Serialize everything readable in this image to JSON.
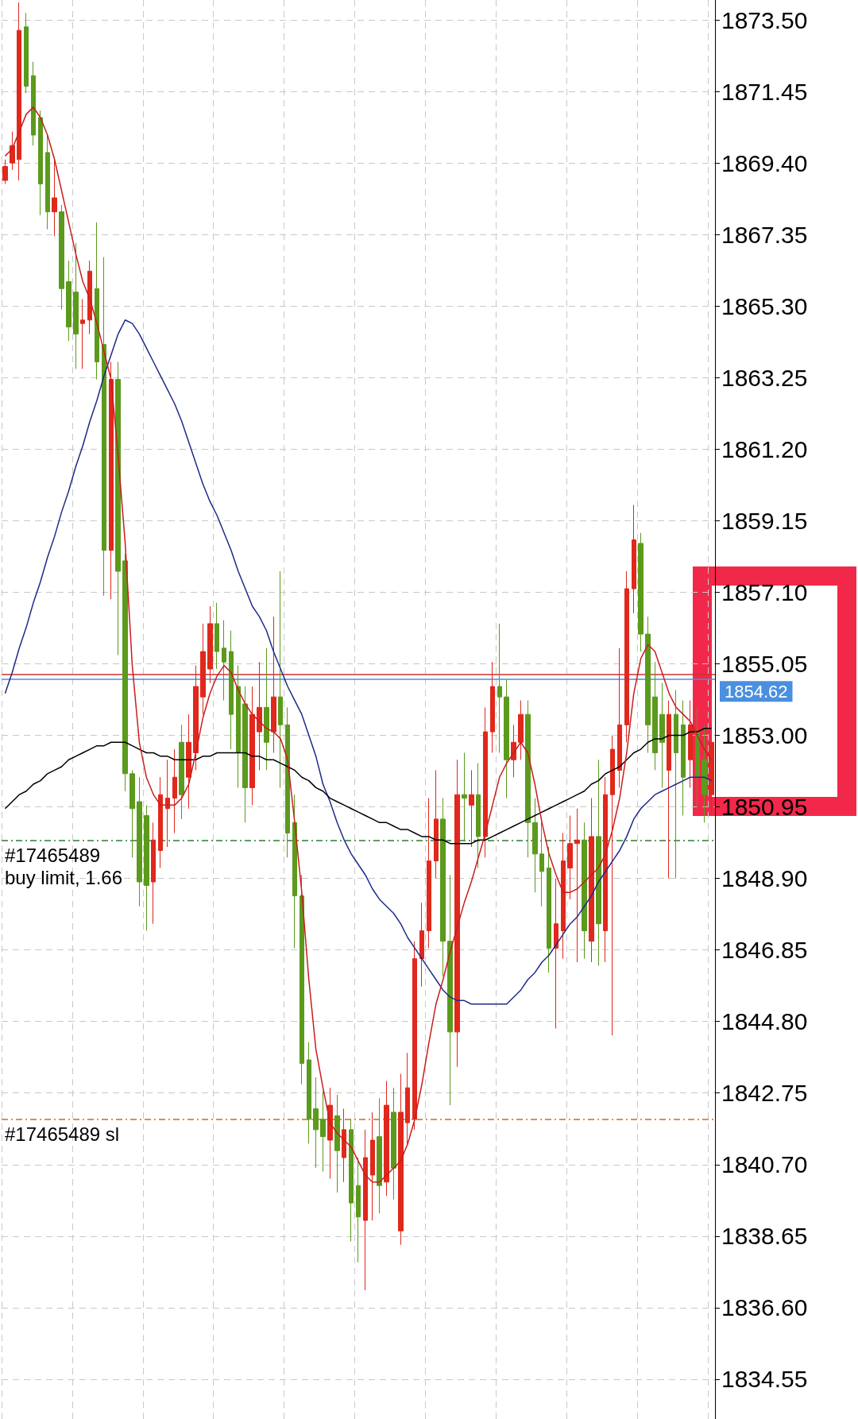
{
  "chart_data": {
    "type": "candlestick",
    "categories": [
      null,
      null,
      null,
      null,
      null,
      null,
      null,
      null,
      null,
      null,
      null,
      null,
      null,
      null,
      null,
      null,
      null,
      null,
      null,
      null,
      null,
      null,
      null,
      null,
      null,
      null,
      null,
      null,
      null,
      null,
      null,
      null,
      null,
      null,
      null,
      null,
      null,
      null,
      null,
      null,
      null,
      null,
      null,
      null,
      null,
      null,
      null,
      null,
      null,
      null,
      null,
      null,
      null,
      null,
      null,
      null,
      null,
      null,
      null,
      null,
      null,
      null,
      null,
      null,
      null,
      null,
      null,
      null,
      null,
      null,
      null,
      null,
      null,
      null,
      null,
      null,
      null,
      null,
      null,
      null,
      null,
      null,
      null,
      null,
      null,
      null,
      null,
      null,
      null,
      null,
      null,
      null,
      null,
      null,
      null,
      null,
      null,
      null,
      null,
      null,
      null
    ],
    "series": [
      {
        "type": "line",
        "color": "#1f2a88",
        "values": [
          1854.2,
          1854.8,
          1855.5,
          1856.1,
          1856.8,
          1857.4,
          1858.1,
          1858.7,
          1859.4,
          1860.0,
          1860.7,
          1861.3,
          1862.0,
          1862.6,
          1863.3,
          1863.9,
          1864.5,
          1864.9,
          1864.8,
          1864.5,
          1864.1,
          1863.7,
          1863.3,
          1862.9,
          1862.5,
          1862.0,
          1861.4,
          1860.8,
          1860.2,
          1859.7,
          1859.3,
          1858.8,
          1858.3,
          1857.7,
          1857.2,
          1856.7,
          1856.4,
          1856.0,
          1855.4,
          1854.9,
          1854.4,
          1854.0,
          1853.6,
          1853.0,
          1852.4,
          1851.6,
          1851.1,
          1850.5,
          1850.0,
          1849.6,
          1849.3,
          1849.0,
          1848.6,
          1848.3,
          1848.1,
          1847.9,
          1847.6,
          1847.2,
          1846.9,
          1846.6,
          1846.3,
          1846.0,
          1845.7,
          1845.5,
          1845.4,
          1845.4,
          1845.3,
          1845.3,
          1845.3,
          1845.3,
          1845.3,
          1845.3,
          1845.5,
          1845.7,
          1846.0,
          1846.2,
          1846.5,
          1846.7,
          1847.0,
          1847.3,
          1847.6,
          1847.8,
          1848.1,
          1848.4,
          1848.8,
          1849.1,
          1849.4,
          1849.7,
          1850.1,
          1850.6,
          1850.9,
          1851.1,
          1851.3,
          1851.4,
          1851.5,
          1851.6,
          1851.7,
          1851.8,
          1851.8,
          1851.8,
          1851.7
        ]
      },
      {
        "type": "line",
        "color": "#000000",
        "values": [
          1850.9,
          1851.1,
          1851.3,
          1851.4,
          1851.6,
          1851.7,
          1851.9,
          1852.0,
          1852.1,
          1852.3,
          1852.4,
          1852.5,
          1852.6,
          1852.7,
          1852.7,
          1852.8,
          1852.8,
          1852.8,
          1852.7,
          1852.6,
          1852.5,
          1852.5,
          1852.4,
          1852.4,
          1852.3,
          1852.3,
          1852.3,
          1852.3,
          1852.4,
          1852.4,
          1852.5,
          1852.5,
          1852.5,
          1852.5,
          1852.5,
          1852.4,
          1852.4,
          1852.3,
          1852.3,
          1852.2,
          1852.1,
          1852.0,
          1851.8,
          1851.7,
          1851.5,
          1851.4,
          1851.2,
          1851.1,
          1851.0,
          1850.9,
          1850.8,
          1850.7,
          1850.6,
          1850.5,
          1850.5,
          1850.4,
          1850.3,
          1850.3,
          1850.2,
          1850.1,
          1850.1,
          1850.0,
          1850.0,
          1849.9,
          1849.9,
          1849.9,
          1849.9,
          1850.0,
          1850.0,
          1850.1,
          1850.2,
          1850.3,
          1850.4,
          1850.5,
          1850.6,
          1850.7,
          1850.8,
          1850.9,
          1851.0,
          1851.1,
          1851.2,
          1851.3,
          1851.4,
          1851.6,
          1851.7,
          1851.9,
          1852.0,
          1852.1,
          1852.3,
          1852.5,
          1852.6,
          1852.8,
          1852.9,
          1852.9,
          1853.0,
          1853.0,
          1853.0,
          1853.1,
          1853.1,
          1853.2,
          1853.2
        ]
      },
      {
        "type": "line",
        "color": "#c81e1e",
        "values": [
          1869.6,
          1869.8,
          1870.3,
          1870.8,
          1871.0,
          1870.7,
          1870.2,
          1869.5,
          1868.6,
          1867.7,
          1866.8,
          1866.0,
          1865.5,
          1864.8,
          1864.0,
          1863.2,
          1861.0,
          1858.5,
          1855.0,
          1852.8,
          1851.8,
          1851.3,
          1851.0,
          1851.0,
          1851.0,
          1851.2,
          1851.6,
          1852.5,
          1853.5,
          1854.2,
          1854.7,
          1855.0,
          1854.8,
          1854.3,
          1853.9,
          1853.6,
          1853.4,
          1853.2,
          1853.1,
          1852.9,
          1852.3,
          1850.5,
          1848.5,
          1846.0,
          1844.0,
          1842.9,
          1841.9,
          1841.6,
          1841.4,
          1841.2,
          1840.8,
          1840.4,
          1840.2,
          1840.2,
          1840.4,
          1840.6,
          1840.8,
          1841.3,
          1842.0,
          1843.0,
          1844.2,
          1845.3,
          1846.0,
          1846.8,
          1847.5,
          1848.2,
          1848.8,
          1849.5,
          1850.2,
          1851.0,
          1851.8,
          1852.2,
          1852.5,
          1852.8,
          1852.5,
          1851.6,
          1850.5,
          1849.6,
          1849.0,
          1848.5,
          1848.5,
          1848.6,
          1848.8,
          1849.0,
          1849.2,
          1849.6,
          1850.3,
          1851.2,
          1852.5,
          1854.2,
          1855.2,
          1855.6,
          1855.4,
          1854.8,
          1854.2,
          1853.8,
          1853.6,
          1853.4,
          1853.0,
          1852.6,
          1852.3
        ]
      },
      {
        "ohlc": [
          [
            1868.9,
            1869.5,
            1868.8,
            1869.3
          ],
          [
            1869.4,
            1870.3,
            1869.2,
            1869.9
          ],
          [
            1869.5,
            1874.0,
            1868.9,
            1873.2
          ],
          [
            1873.3,
            1873.7,
            1871.4,
            1871.6
          ],
          [
            1871.9,
            1872.3,
            1869.9,
            1870.2
          ],
          [
            1870.7,
            1870.9,
            1867.9,
            1868.8
          ],
          [
            1869.7,
            1870.2,
            1867.5,
            1868.0
          ],
          [
            1868.0,
            1869.5,
            1867.3,
            1868.4
          ],
          [
            1868.0,
            1868.2,
            1865.2,
            1865.8
          ],
          [
            1866.0,
            1866.6,
            1864.3,
            1864.7
          ],
          [
            1865.7,
            1867.1,
            1863.5,
            1864.5
          ],
          [
            1864.8,
            1865.5,
            1863.5,
            1864.9
          ],
          [
            1864.9,
            1866.6,
            1864.5,
            1866.3
          ],
          [
            1865.8,
            1867.7,
            1863.2,
            1863.7
          ],
          [
            1864.2,
            1866.7,
            1857.0,
            1858.3
          ],
          [
            1858.3,
            1863.7,
            1856.9,
            1863.2
          ],
          [
            1863.2,
            1863.7,
            1855.3,
            1857.7
          ],
          [
            1858.0,
            1858.2,
            1851.4,
            1851.9
          ],
          [
            1851.9,
            1852.0,
            1849.5,
            1850.9
          ],
          [
            1851.1,
            1851.8,
            1848.1,
            1848.8
          ],
          [
            1850.7,
            1851.0,
            1847.4,
            1848.7
          ],
          [
            1848.8,
            1850.5,
            1847.6,
            1850.0
          ],
          [
            1849.7,
            1851.8,
            1849.2,
            1851.3
          ],
          [
            1850.9,
            1852.3,
            1849.8,
            1851.2
          ],
          [
            1851.2,
            1852.6,
            1850.2,
            1851.8
          ],
          [
            1852.8,
            1853.3,
            1850.6,
            1851.3
          ],
          [
            1851.8,
            1853.6,
            1850.9,
            1852.8
          ],
          [
            1852.5,
            1855.0,
            1852.0,
            1854.4
          ],
          [
            1854.1,
            1856.2,
            1853.6,
            1855.4
          ],
          [
            1854.9,
            1856.7,
            1854.5,
            1856.2
          ],
          [
            1856.2,
            1856.8,
            1854.9,
            1855.4
          ],
          [
            1855.5,
            1856.3,
            1854.0,
            1855.1
          ],
          [
            1855.4,
            1856.0,
            1852.6,
            1853.6
          ],
          [
            1854.4,
            1855.0,
            1851.5,
            1852.5
          ],
          [
            1853.9,
            1854.4,
            1850.5,
            1851.5
          ],
          [
            1851.5,
            1854.4,
            1851.0,
            1853.6
          ],
          [
            1853.1,
            1855.1,
            1852.0,
            1853.8
          ],
          [
            1853.8,
            1855.5,
            1852.0,
            1852.8
          ],
          [
            1853.1,
            1856.4,
            1852.5,
            1854.1
          ],
          [
            1854.1,
            1857.7,
            1851.5,
            1853.3
          ],
          [
            1853.3,
            1853.8,
            1849.5,
            1850.2
          ],
          [
            1850.5,
            1851.3,
            1846.9,
            1848.4
          ],
          [
            1848.4,
            1849.0,
            1843.0,
            1843.6
          ],
          [
            1843.7,
            1844.2,
            1841.3,
            1842.0
          ],
          [
            1842.3,
            1843.2,
            1840.6,
            1841.7
          ],
          [
            1842.0,
            1842.8,
            1840.5,
            1841.5
          ],
          [
            1841.4,
            1842.9,
            1840.3,
            1842.4
          ],
          [
            1842.1,
            1842.7,
            1839.9,
            1841.1
          ],
          [
            1840.9,
            1842.3,
            1840.2,
            1841.7
          ],
          [
            1841.7,
            1842.0,
            1838.5,
            1839.6
          ],
          [
            1840.1,
            1840.9,
            1837.9,
            1839.2
          ],
          [
            1839.1,
            1841.7,
            1837.1,
            1840.9
          ],
          [
            1840.4,
            1842.2,
            1839.1,
            1841.4
          ],
          [
            1841.5,
            1842.6,
            1839.3,
            1840.1
          ],
          [
            1840.2,
            1843.1,
            1839.8,
            1842.4
          ],
          [
            1842.2,
            1842.9,
            1839.7,
            1840.6
          ],
          [
            1838.8,
            1843.3,
            1838.4,
            1842.2
          ],
          [
            1841.9,
            1843.9,
            1841.3,
            1842.9
          ],
          [
            1842.0,
            1847.1,
            1841.7,
            1846.6
          ],
          [
            1846.6,
            1848.2,
            1845.8,
            1847.4
          ],
          [
            1847.4,
            1851.2,
            1846.9,
            1849.4
          ],
          [
            1849.4,
            1852.0,
            1848.9,
            1850.6
          ],
          [
            1850.6,
            1851.2,
            1846.1,
            1847.1
          ],
          [
            1847.1,
            1849.0,
            1842.4,
            1844.5
          ],
          [
            1844.5,
            1852.3,
            1843.5,
            1851.3
          ],
          [
            1851.3,
            1852.5,
            1850.0,
            1851.2
          ],
          [
            1851.0,
            1852.0,
            1849.8,
            1851.3
          ],
          [
            1851.3,
            1852.2,
            1849.2,
            1850.1
          ],
          [
            1850.1,
            1853.8,
            1849.5,
            1853.1
          ],
          [
            1853.1,
            1855.1,
            1852.5,
            1854.4
          ],
          [
            1854.4,
            1856.2,
            1852.5,
            1854.1
          ],
          [
            1854.1,
            1854.6,
            1851.2,
            1852.3
          ],
          [
            1852.3,
            1853.3,
            1851.8,
            1852.8
          ],
          [
            1852.8,
            1854.0,
            1852.3,
            1853.6
          ],
          [
            1853.6,
            1854.0,
            1849.5,
            1850.5
          ],
          [
            1850.5,
            1851.2,
            1848.5,
            1849.6
          ],
          [
            1849.6,
            1850.5,
            1848.1,
            1849.1
          ],
          [
            1849.2,
            1849.8,
            1846.2,
            1846.9
          ],
          [
            1846.9,
            1848.9,
            1844.6,
            1847.6
          ],
          [
            1847.4,
            1850.2,
            1846.6,
            1849.4
          ],
          [
            1849.2,
            1850.7,
            1848.3,
            1849.9
          ],
          [
            1849.9,
            1850.9,
            1846.5,
            1850.0
          ],
          [
            1850.0,
            1850.5,
            1846.6,
            1847.4
          ],
          [
            1847.1,
            1851.2,
            1846.5,
            1850.1
          ],
          [
            1850.1,
            1852.3,
            1846.4,
            1847.6
          ],
          [
            1847.4,
            1851.8,
            1846.5,
            1851.3
          ],
          [
            1851.3,
            1853.0,
            1844.4,
            1852.6
          ],
          [
            1852.0,
            1855.5,
            1851.5,
            1853.3
          ],
          [
            1853.3,
            1857.7,
            1852.8,
            1857.2
          ],
          [
            1857.2,
            1859.6,
            1856.5,
            1858.6
          ],
          [
            1858.5,
            1858.8,
            1855.4,
            1855.9
          ],
          [
            1855.9,
            1856.4,
            1852.5,
            1853.3
          ],
          [
            1854.1,
            1855.1,
            1852.0,
            1852.5
          ],
          [
            1853.6,
            1854.5,
            1851.5,
            1852.8
          ],
          [
            1852.0,
            1854.0,
            1848.9,
            1853.6
          ],
          [
            1853.6,
            1854.3,
            1848.9,
            1852.5
          ],
          [
            1853.3,
            1854.0,
            1850.7,
            1851.8
          ],
          [
            1852.3,
            1854.0,
            1851.5,
            1853.3
          ],
          [
            1853.1,
            1853.8,
            1850.9,
            1851.8
          ],
          [
            1852.3,
            1853.3,
            1850.5,
            1851.3
          ],
          [
            1851.3,
            1853.3,
            1850.7,
            1852.8
          ]
        ],
        "colors": [
          "#e0281c",
          "#e0281c",
          "#e0281c",
          "#5b9a1d",
          "#5b9a1d",
          "#5b9a1d",
          "#5b9a1d",
          "#e0281c",
          "#5b9a1d",
          "#5b9a1d",
          "#5b9a1d",
          "#e0281c",
          "#e0281c",
          "#5b9a1d",
          "#5b9a1d",
          "#e0281c",
          "#5b9a1d",
          "#5b9a1d",
          "#5b9a1d",
          "#5b9a1d",
          "#5b9a1d",
          "#e0281c",
          "#e0281c",
          "#e0281c",
          "#e0281c",
          "#5b9a1d",
          "#e0281c",
          "#e0281c",
          "#e0281c",
          "#e0281c",
          "#5b9a1d",
          "#5b9a1d",
          "#5b9a1d",
          "#5b9a1d",
          "#5b9a1d",
          "#e0281c",
          "#e0281c",
          "#5b9a1d",
          "#e0281c",
          "#5b9a1d",
          "#5b9a1d",
          "#5b9a1d",
          "#5b9a1d",
          "#5b9a1d",
          "#5b9a1d",
          "#5b9a1d",
          "#e0281c",
          "#5b9a1d",
          "#e0281c",
          "#5b9a1d",
          "#5b9a1d",
          "#e0281c",
          "#e0281c",
          "#5b9a1d",
          "#e0281c",
          "#5b9a1d",
          "#e0281c",
          "#e0281c",
          "#e0281c",
          "#e0281c",
          "#e0281c",
          "#e0281c",
          "#5b9a1d",
          "#5b9a1d",
          "#e0281c",
          "#5b9a1d",
          "#e0281c",
          "#5b9a1d",
          "#e0281c",
          "#e0281c",
          "#5b9a1d",
          "#5b9a1d",
          "#e0281c",
          "#e0281c",
          "#5b9a1d",
          "#5b9a1d",
          "#5b9a1d",
          "#5b9a1d",
          "#e0281c",
          "#e0281c",
          "#e0281c",
          "#e0281c",
          "#5b9a1d",
          "#e0281c",
          "#5b9a1d",
          "#e0281c",
          "#e0281c",
          "#e0281c",
          "#e0281c",
          "#e0281c",
          "#5b9a1d",
          "#5b9a1d",
          "#5b9a1d",
          "#5b9a1d",
          "#e0281c",
          "#5b9a1d",
          "#5b9a1d",
          "#e0281c",
          "#5b9a1d",
          "#5b9a1d",
          "#e0281c"
        ]
      }
    ],
    "ylim": [
      1833.41,
      1874.07
    ],
    "yticks": [
      {
        "value": 1834.55,
        "label": "1834.55"
      },
      {
        "value": 1836.6,
        "label": "1836.60"
      },
      {
        "value": 1838.65,
        "label": "1838.65"
      },
      {
        "value": 1840.7,
        "label": "1840.70"
      },
      {
        "value": 1842.75,
        "label": "1842.75"
      },
      {
        "value": 1844.8,
        "label": "1844.80"
      },
      {
        "value": 1846.85,
        "label": "1846.85"
      },
      {
        "value": 1848.9,
        "label": "1848.90"
      },
      {
        "value": 1850.95,
        "label": "1850.95"
      },
      {
        "value": 1853.0,
        "label": "1853.00"
      },
      {
        "value": 1855.05,
        "label": "1855.05"
      },
      {
        "value": 1857.1,
        "label": "1857.10"
      },
      {
        "value": 1859.15,
        "label": "1859.15"
      },
      {
        "value": 1861.2,
        "label": "1861.20"
      },
      {
        "value": 1863.25,
        "label": "1863.25"
      },
      {
        "value": 1865.3,
        "label": "1865.30"
      },
      {
        "value": 1867.35,
        "label": "1867.35"
      },
      {
        "value": 1869.4,
        "label": "1869.40"
      },
      {
        "value": 1871.45,
        "label": "1871.45"
      },
      {
        "value": 1873.5,
        "label": "1873.50"
      }
    ],
    "grid": true,
    "tick_labels": "y",
    "ref_lines": [
      {
        "axis": "y",
        "value": 1854.75,
        "color": "#d03030",
        "line_style": "solid"
      },
      {
        "axis": "y",
        "value": 1854.62,
        "label": "1854.62",
        "color": "#4a8fe0",
        "line_style": "solid"
      },
      {
        "axis": "y",
        "value": 1849.98,
        "label": "#17465489 buy limit, 1.66",
        "color": "#2e7d2e",
        "line_style": "dashed"
      },
      {
        "axis": "y",
        "value": 1841.99,
        "label": "#17465489 sl",
        "color": "#d2691e",
        "line_style": "dashed"
      }
    ]
  }
}
